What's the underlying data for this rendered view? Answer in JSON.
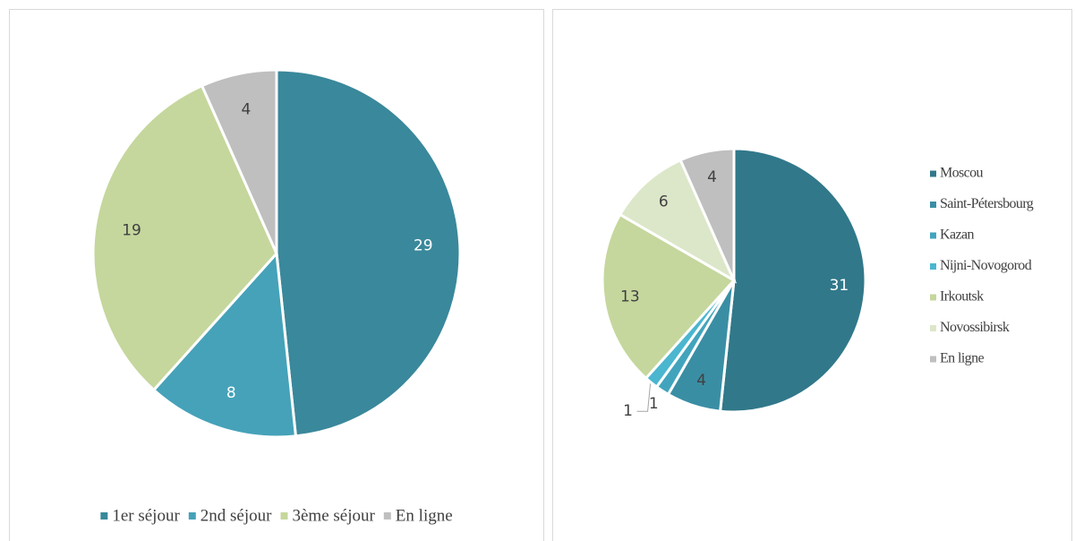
{
  "chart_data": [
    {
      "type": "pie",
      "categories": [
        "1er séjour",
        "2nd séjour",
        "3ème séjour",
        "En ligne"
      ],
      "values": [
        29,
        8,
        19,
        4
      ],
      "colors": [
        "#3a889b",
        "#45a2b9",
        "#c5d79d",
        "#bfbfbf"
      ],
      "legend": "bottom"
    },
    {
      "type": "pie",
      "categories": [
        "Moscou",
        "Saint-Pétersbourg",
        "Kazan",
        "Nijni-Novogorod",
        "Irkoutsk",
        "Novossibirsk",
        "En ligne"
      ],
      "values": [
        31,
        4,
        1,
        1,
        13,
        6,
        4
      ],
      "colors": [
        "#31788a",
        "#3a8ea4",
        "#42a4bc",
        "#4bb6cf",
        "#c5d79d",
        "#dce7c9",
        "#bfbfbf"
      ],
      "legend": "right"
    }
  ]
}
